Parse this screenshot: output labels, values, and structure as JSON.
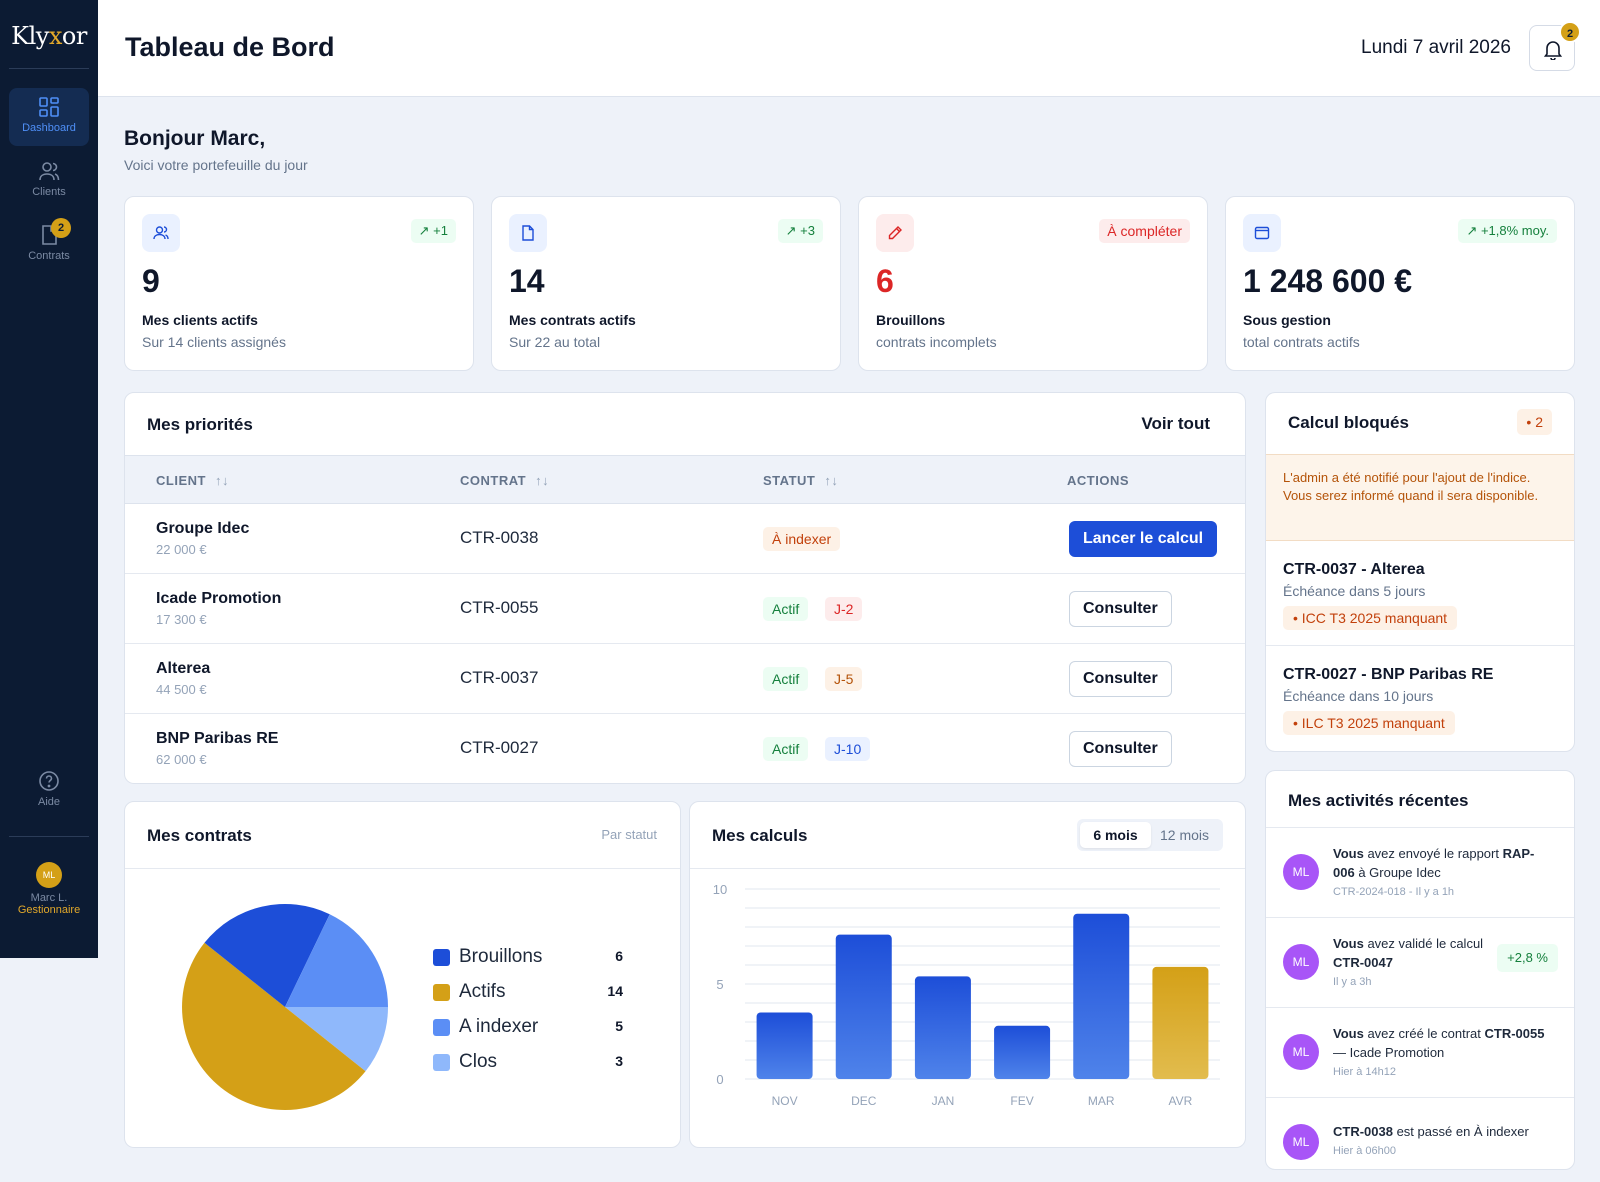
{
  "sidebar": {
    "logo_main": "Kly",
    "logo_accent": "x",
    "logo_end": "or",
    "nav": [
      {
        "label": "Dashboard",
        "icon": "grid-icon",
        "active": true
      },
      {
        "label": "Clients",
        "icon": "users-icon"
      },
      {
        "label": "Contrats",
        "icon": "document-icon",
        "badge": "2"
      }
    ],
    "help_label": "Aide",
    "user": {
      "initials": "ML",
      "name": "Marc L.",
      "role": "Gestionnaire"
    }
  },
  "header": {
    "title": "Tableau de Bord",
    "date": "Lundi 7 avril 2026",
    "notif_count": "2"
  },
  "greeting": {
    "title": "Bonjour Marc,",
    "subtitle": "Voici votre portefeuille du jour"
  },
  "kpis": [
    {
      "icon": "users-icon",
      "trend": "↗ +1",
      "value": "9",
      "label": "Mes clients actifs",
      "sub": "Sur 14 clients assignés"
    },
    {
      "icon": "document-icon",
      "trend": "↗ +3",
      "value": "14",
      "label": "Mes contrats actifs",
      "sub": "Sur 22 au total"
    },
    {
      "icon": "pencil-icon",
      "trend": "À compléter",
      "value": "6",
      "label": "Brouillons",
      "sub": "contrats incomplets"
    },
    {
      "icon": "wallet-icon",
      "trend": "↗ +1,8% moy.",
      "value": "1 248 600 €",
      "label": "Sous gestion",
      "sub": "total contrats actifs"
    }
  ],
  "priorities": {
    "title": "Mes priorités",
    "see_all": "Voir tout",
    "columns": [
      "CLIENT",
      "CONTRAT",
      "STATUT",
      "ACTIONS"
    ],
    "sort_glyph": "↑↓",
    "rows": [
      {
        "client": "Groupe Idec",
        "amount": "22 000 €",
        "contract": "CTR-0038",
        "status": "À indexer",
        "due": "",
        "action": "Lancer le calcul"
      },
      {
        "client": "Icade Promotion",
        "amount": "17 300 €",
        "contract": "CTR-0055",
        "status": "Actif",
        "due": "J-2",
        "action": "Consulter"
      },
      {
        "client": "Alterea",
        "amount": "44 500 €",
        "contract": "CTR-0037",
        "status": "Actif",
        "due": "J-5",
        "action": "Consulter"
      },
      {
        "client": "BNP Paribas RE",
        "amount": "62 000 €",
        "contract": "CTR-0027",
        "status": "Actif",
        "due": "J-10",
        "action": "Consulter"
      }
    ]
  },
  "blocked": {
    "title": "Calcul bloqués",
    "count": "• 2",
    "notice": "L'admin a été notifié pour l'ajout de l'indice. Vous serez informé quand il sera disponible.",
    "items": [
      {
        "title": "CTR-0037 - Alterea",
        "sub": "Échéance dans 5 jours",
        "tag": "• ICC T3 2025 manquant"
      },
      {
        "title": "CTR-0027 - BNP Paribas RE",
        "sub": "Échéance dans 10 jours",
        "tag": "• ILC T3 2025 manquant"
      }
    ]
  },
  "activities": {
    "title": "Mes activités récentes",
    "items": [
      {
        "initials": "ML",
        "who": "Vous",
        "text1": " avez envoyé le rapport ",
        "ref": "RAP-006",
        "text2": " à Groupe Idec",
        "meta": "CTR-2024-018 - Il y a 1h",
        "pill": ""
      },
      {
        "initials": "ML",
        "who": "Vous",
        "text1": " avez validé le calcul ",
        "ref": "CTR-0047",
        "text2": "",
        "meta": "Il y a 3h",
        "pill": "+2,8 %"
      },
      {
        "initials": "ML",
        "who": "Vous",
        "text1": " avez créé le contrat ",
        "ref": "CTR-0055",
        "text2": " — Icade Promotion",
        "meta": "Hier à 14h12",
        "pill": ""
      },
      {
        "initials": "ML",
        "who": "",
        "text1": "",
        "ref": "CTR-0038",
        "text2": " est passé en À indexer",
        "meta": "Hier à 06h00",
        "pill": ""
      }
    ]
  },
  "contrats_card": {
    "title": "Mes contrats",
    "filter": "Par statut"
  },
  "calculs_card": {
    "title": "Mes calculs",
    "seg": [
      "6 mois",
      "12 mois"
    ]
  },
  "chart_data": [
    {
      "type": "pie",
      "categories": [
        "Brouillons",
        "Actifs",
        "A indexer",
        "Clos"
      ],
      "values": [
        6,
        14,
        5,
        3
      ],
      "colors": [
        "#1d4ed8",
        "#d4a017",
        "#5b8ef5",
        "#8fb8fb"
      ],
      "legend_position": "right"
    },
    {
      "type": "bar",
      "categories": [
        "NOV",
        "DEC",
        "JAN",
        "FEV",
        "MAR",
        "AVR"
      ],
      "values": [
        3.5,
        7.6,
        5.4,
        2.8,
        8.7,
        5.9
      ],
      "highlight": "AVR",
      "colors": {
        "bar": "#2f62df",
        "highlight": "#d4a017"
      },
      "ylim": [
        0,
        10
      ],
      "yticks": [
        0,
        5,
        10
      ],
      "grid": true
    }
  ]
}
